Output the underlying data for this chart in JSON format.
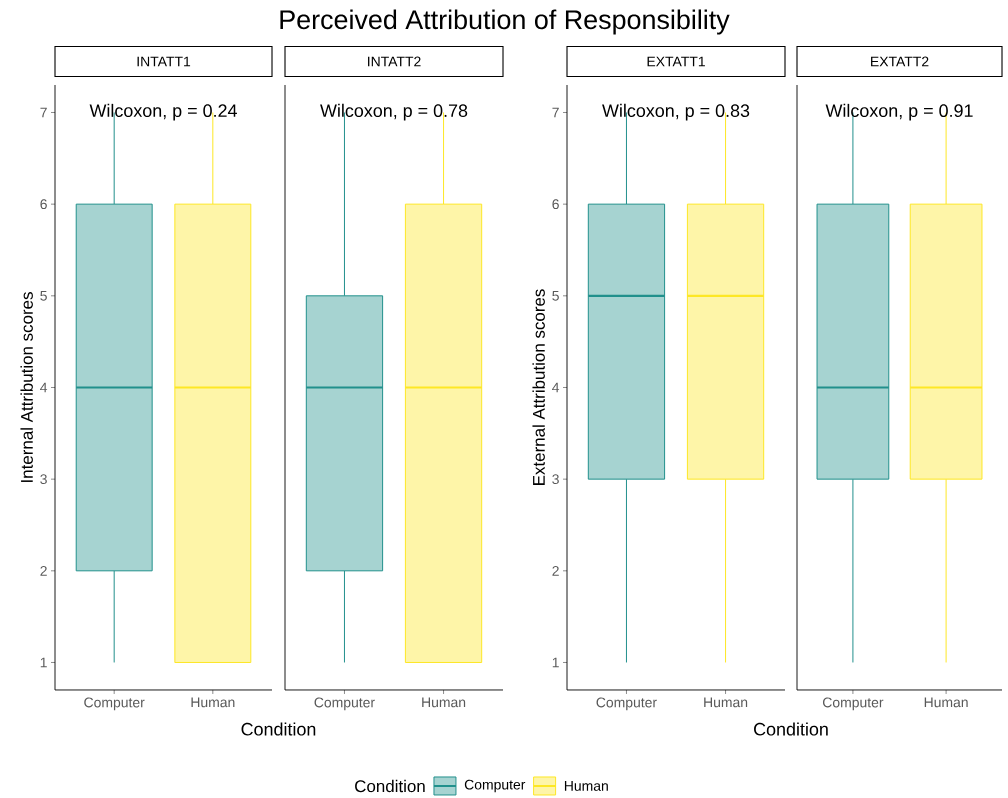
{
  "chart_data": [
    {
      "type": "box",
      "title": "INTATT1",
      "subtitle": "Perceived Attribution of Responsibility",
      "xlabel": "Condition",
      "ylabel": "Internal Attribution scores",
      "legend_title": "Condition",
      "legend": "bottom",
      "categories": [
        "Computer",
        "Human"
      ],
      "ylim": [
        0.7,
        7.3
      ],
      "yticks": [
        1,
        2,
        3,
        4,
        5,
        6,
        7
      ],
      "annotations": [
        "Wilcoxon, p = 0.24"
      ],
      "series": [
        {
          "name": "Computer",
          "color": "#21908c",
          "boxes": [
            {
              "low": 1,
              "q1": 2,
              "median": 4,
              "q3": 6,
              "high": 7
            },
            null
          ]
        },
        {
          "name": "Human",
          "color": "#fde725",
          "boxes": [
            null,
            {
              "low": 1,
              "q1": 1,
              "median": 4,
              "q3": 6,
              "high": 7
            }
          ]
        }
      ]
    },
    {
      "type": "box",
      "title": "INTATT2",
      "categories": [
        "Computer",
        "Human"
      ],
      "ylim": [
        0.7,
        7.3
      ],
      "yticks": [
        1,
        2,
        3,
        4,
        5,
        6,
        7
      ],
      "tick_labels": "x",
      "annotations": [
        "Wilcoxon, p = 0.78"
      ],
      "series": [
        {
          "color": "#21908c",
          "boxes": [
            {
              "low": 1,
              "q1": 2,
              "median": 4,
              "q3": 5,
              "high": 7
            },
            null
          ]
        },
        {
          "color": "#fde725",
          "boxes": [
            null,
            {
              "low": 1,
              "q1": 1,
              "median": 4,
              "q3": 6,
              "high": 7
            }
          ]
        }
      ]
    },
    {
      "type": "box",
      "title": "EXTATT1",
      "xlabel": "Condition",
      "ylabel": "External Attribution scores",
      "categories": [
        "Computer",
        "Human"
      ],
      "ylim": [
        0.7,
        7.3
      ],
      "yticks": [
        1,
        2,
        3,
        4,
        5,
        6,
        7
      ],
      "annotations": [
        "Wilcoxon, p = 0.83"
      ],
      "series": [
        {
          "color": "#21908c",
          "boxes": [
            {
              "low": 1,
              "q1": 3,
              "median": 5,
              "q3": 6,
              "high": 7
            },
            null
          ]
        },
        {
          "color": "#fde725",
          "boxes": [
            null,
            {
              "low": 1,
              "q1": 3,
              "median": 5,
              "q3": 6,
              "high": 7
            }
          ]
        }
      ]
    },
    {
      "type": "box",
      "title": "EXTATT2",
      "categories": [
        "Computer",
        "Human"
      ],
      "ylim": [
        0.7,
        7.3
      ],
      "yticks": [
        1,
        2,
        3,
        4,
        5,
        6,
        7
      ],
      "tick_labels": "x",
      "annotations": [
        "Wilcoxon, p = 0.91"
      ],
      "series": [
        {
          "color": "#21908c",
          "boxes": [
            {
              "low": 1,
              "q1": 3,
              "median": 4,
              "q3": 6,
              "high": 7
            },
            null
          ]
        },
        {
          "color": "#fde725",
          "boxes": [
            null,
            {
              "low": 1,
              "q1": 3,
              "median": 4,
              "q3": 6,
              "high": 7
            }
          ]
        }
      ]
    }
  ]
}
